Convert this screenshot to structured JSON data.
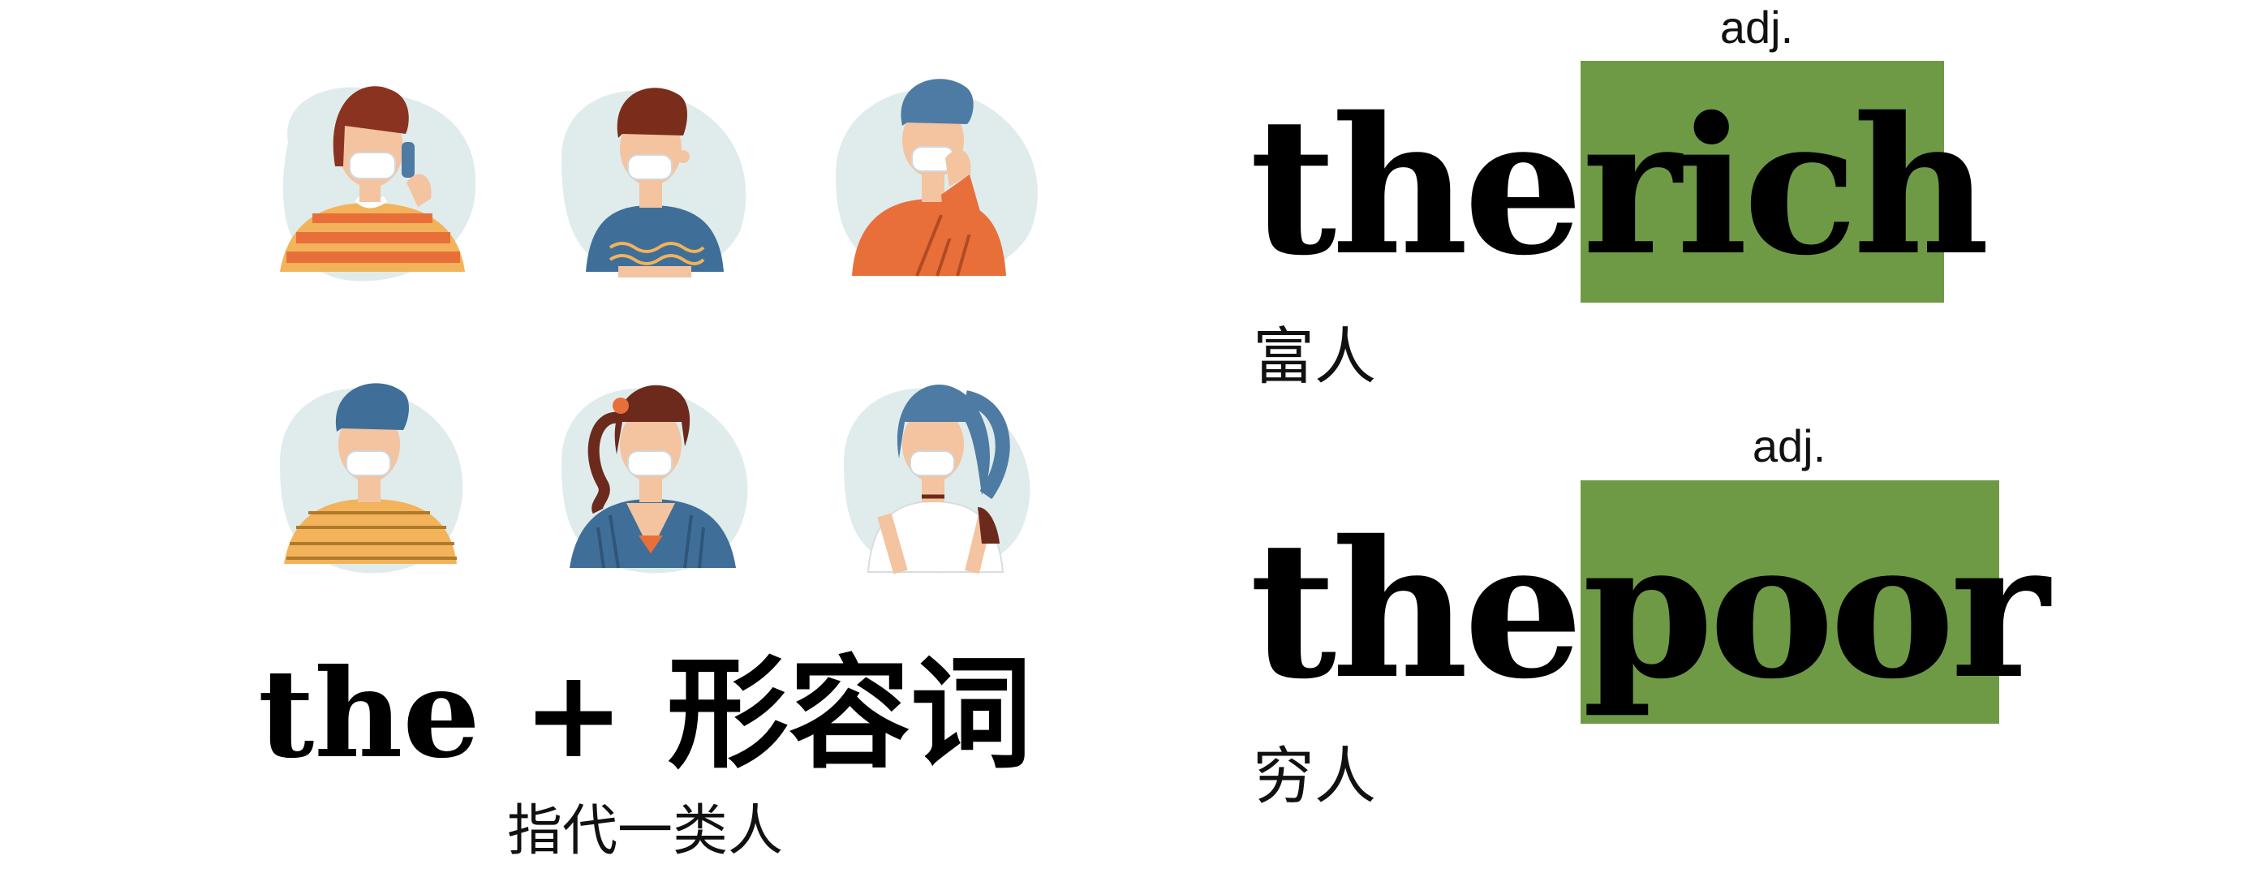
{
  "formula": {
    "the": "the",
    "plus": "+",
    "adjective_cn": "形容词"
  },
  "subtitle": "指代一类人",
  "examples": [
    {
      "article": "the",
      "word": "rich",
      "pos": "adj.",
      "meaning": "富人"
    },
    {
      "article": "the",
      "word": "poor",
      "pos": "adj.",
      "meaning": "穷人"
    }
  ],
  "colors": {
    "highlight": "#6f9a45",
    "blob": "#dfeceb",
    "skin": "#f4c3a0",
    "orange": "#e86f3a",
    "yellow": "#f2b35a",
    "blue": "#3f6f98",
    "steel_blue": "#4d7ba3",
    "dark_brown": "#6b2a1c"
  },
  "avatars": [
    {
      "icon": "woman-orange-striped-sweater-mask-icon"
    },
    {
      "icon": "man-blue-tshirt-mask-icon"
    },
    {
      "icon": "man-orange-sweater-mask-icon"
    },
    {
      "icon": "man-yellow-striped-shirt-mask-icon"
    },
    {
      "icon": "woman-blue-cardigan-mask-icon"
    },
    {
      "icon": "woman-white-top-mask-icon"
    }
  ]
}
